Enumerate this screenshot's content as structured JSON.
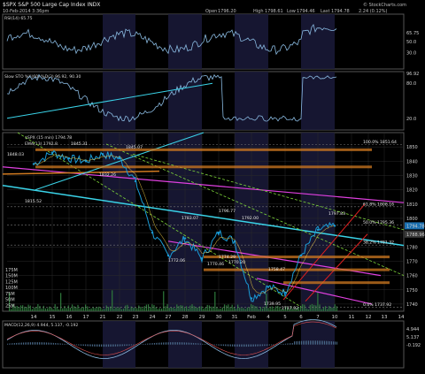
{
  "header": {
    "symbol_title": "$SPX S&P 500 Large Cap Index INDX",
    "date_line": "10-Feb-2014 3:36pm",
    "open_label": "Open",
    "open_value": "1796.20",
    "high_label": "High",
    "high_value": "1798.61",
    "low_label": "Low",
    "low_value": "1794.46",
    "last_label": "Last",
    "last_value": "1794.78",
    "change": "2.24 (0.12%)",
    "watermark": "© StockCharts.com"
  },
  "colors": {
    "background": "#000000",
    "price": "#1a9bd6",
    "indicator": "#89b9e0",
    "grid": "#2a2a2a",
    "shade": "#1a1a3a",
    "magenta": "#e040e0",
    "cyan": "#3ad3e8",
    "orange": "#d07a20",
    "green_dash": "#7fd83a",
    "red": "#e02020",
    "volume": "#2e7a3c"
  },
  "rsi_panel": {
    "label": "RSI(14) 65.75",
    "tick_labels": [
      "65.75",
      "50.0",
      "30.0"
    ],
    "badge": "65.75"
  },
  "sto_panel": {
    "label": "Slow STO %K(60) %D(3) 96.92, 90.30",
    "tick_labels": [
      "96.92",
      "80.0",
      "20.0"
    ],
    "badge": "96.92"
  },
  "price_panel": {
    "legend_title": "$SPX (15 min) 1794.78",
    "legend_ema": "EMA(13) 1792.8",
    "tick_labels": [
      "1850",
      "1840",
      "1830",
      "1820",
      "1810",
      "1800",
      "1790",
      "1780",
      "1770",
      "1760",
      "1750",
      "1740"
    ],
    "badges": [
      "1794.78",
      "1788.96"
    ],
    "annotations": [
      "1848.03",
      "1845.31",
      "1845.07",
      "1832.26",
      "1815.52",
      "1783.07",
      "1796.77",
      "1792.00",
      "1797.83",
      "1772.06",
      "1770.46",
      "1774.29",
      "1770.20",
      "1758.47",
      "1739.95",
      "1737.92"
    ],
    "fib_labels": [
      "100.0% 1851.64",
      "61.8% 1808.16",
      "50.0% 1795.36",
      "38.2% 1781.32",
      "0.0% 1737.92"
    ]
  },
  "volume_panel": {
    "tick_labels": [
      "175M",
      "150M",
      "125M",
      "100M",
      "75M",
      "50M",
      "25M"
    ]
  },
  "x_axis": {
    "labels": [
      "14",
      "15",
      "16",
      "17",
      "21",
      "22",
      "23",
      "24",
      "27",
      "28",
      "29",
      "30",
      "31",
      "Feb",
      "4",
      "5",
      "6",
      "7",
      "10",
      "11",
      "12",
      "13",
      "14"
    ]
  },
  "macd_panel": {
    "label": "MACD(12,26,9) 4.944, 5.137, -0.192",
    "tick_labels": [
      "4.944",
      "5.137",
      "-0.192"
    ]
  },
  "chart_data": {
    "type": "line",
    "title": "$SPX S&P 500 Large Cap Index INDX",
    "x": [
      "Jan 14",
      "Jan 15",
      "Jan 16",
      "Jan 17",
      "Jan 21",
      "Jan 22",
      "Jan 23",
      "Jan 24",
      "Jan 27",
      "Jan 28",
      "Jan 29",
      "Jan 30",
      "Jan 31",
      "Feb 3",
      "Feb 4",
      "Feb 5",
      "Feb 6",
      "Feb 7",
      "Feb 10"
    ],
    "series": [
      {
        "name": "$SPX (15 min)",
        "values": [
          1838,
          1846,
          1842,
          1840,
          1845,
          1842,
          1826,
          1790,
          1774,
          1786,
          1772,
          1790,
          1784,
          1744,
          1752,
          1748,
          1774,
          1792,
          1794.78
        ]
      }
    ],
    "ylim": [
      1735,
      1860
    ],
    "levels": [
      {
        "name": "Fib 100.0%",
        "value": 1851.64
      },
      {
        "name": "Fib 61.8%",
        "value": 1808.16
      },
      {
        "name": "Fib 50.0%",
        "value": 1795.36
      },
      {
        "name": "Fib 38.2%",
        "value": 1781.32
      },
      {
        "name": "Fib 0.0%",
        "value": 1737.92
      }
    ],
    "volume_ylim": [
      0,
      200
    ],
    "grid": true,
    "legend": "top-left"
  }
}
